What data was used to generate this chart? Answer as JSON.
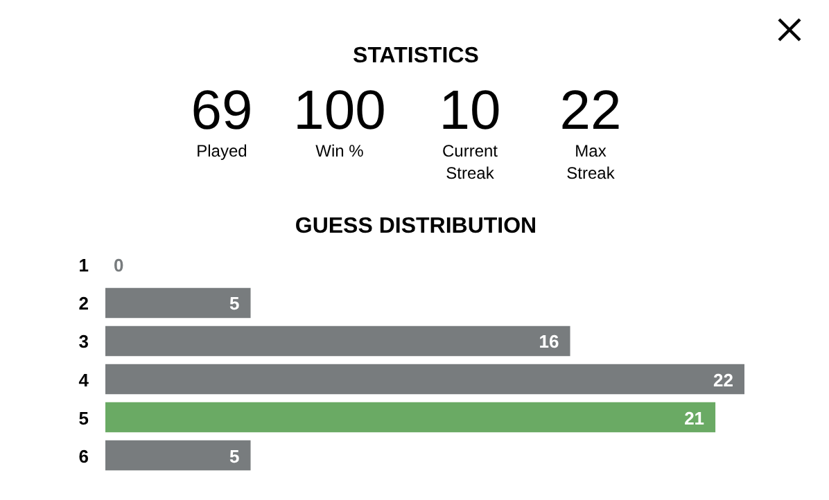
{
  "chart_data": [
    {
      "type": "other",
      "title": "STATISTICS",
      "annotations": [
        "69",
        "Played",
        "100",
        "Win %",
        "10",
        "Current Streak",
        "22",
        "Max Streak"
      ]
    },
    {
      "type": "bar",
      "orientation": "horizontal",
      "title": "GUESS DISTRIBUTION",
      "categories": [
        "1",
        "2",
        "3",
        "4",
        "5",
        "6"
      ],
      "values": [
        0,
        5,
        16,
        22,
        21,
        5
      ],
      "colors": [
        "#787c7e",
        "#787c7e",
        "#787c7e",
        "#787c7e",
        "#6aaa64",
        "#787c7e"
      ],
      "xlim": [
        0,
        22
      ],
      "data_labels": true,
      "tick_labels": "y"
    }
  ]
}
